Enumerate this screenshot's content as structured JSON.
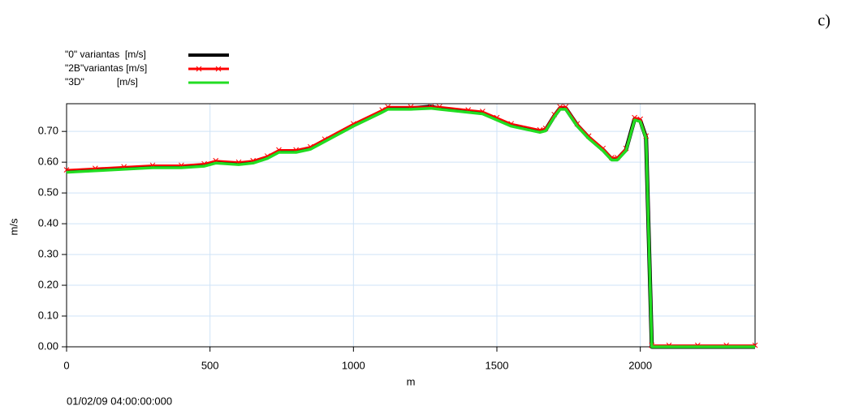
{
  "chart_data": {
    "type": "line",
    "label": "c)",
    "xlabel": "m",
    "ylabel": "m/s",
    "footer": "01/02/09 04:00:00:000",
    "x": [
      0,
      100,
      200,
      300,
      400,
      480,
      520,
      600,
      650,
      700,
      740,
      800,
      850,
      900,
      1000,
      1100,
      1120,
      1200,
      1270,
      1300,
      1400,
      1450,
      1500,
      1550,
      1650,
      1670,
      1700,
      1720,
      1740,
      1780,
      1820,
      1870,
      1900,
      1920,
      1950,
      1980,
      2000,
      2020,
      2040,
      2100,
      2200,
      2300,
      2400
    ],
    "series": [
      {
        "name": "\"0\" variantas  [m/s]",
        "color": "#000000",
        "values": [
          0.57,
          0.575,
          0.58,
          0.585,
          0.585,
          0.59,
          0.6,
          0.595,
          0.6,
          0.615,
          0.635,
          0.635,
          0.645,
          0.67,
          0.72,
          0.765,
          0.775,
          0.775,
          0.78,
          0.775,
          0.765,
          0.76,
          0.74,
          0.72,
          0.7,
          0.705,
          0.75,
          0.775,
          0.775,
          0.72,
          0.68,
          0.64,
          0.61,
          0.61,
          0.64,
          0.74,
          0.735,
          0.68,
          0,
          0,
          0,
          0,
          0
        ]
      },
      {
        "name": "\"2B\"variantas [m/s]",
        "color": "#ff0000",
        "values": [
          0.575,
          0.58,
          0.585,
          0.59,
          0.59,
          0.595,
          0.605,
          0.6,
          0.605,
          0.62,
          0.64,
          0.64,
          0.65,
          0.675,
          0.725,
          0.77,
          0.78,
          0.78,
          0.78,
          0.78,
          0.77,
          0.765,
          0.745,
          0.725,
          0.705,
          0.71,
          0.755,
          0.78,
          0.78,
          0.725,
          0.685,
          0.645,
          0.615,
          0.615,
          0.645,
          0.745,
          0.74,
          0.685,
          0.005,
          0.005,
          0.005,
          0.005,
          0.005
        ]
      },
      {
        "name": "\"3D\"            [m/s]",
        "color": "#22dd22",
        "values": [
          0.567,
          0.572,
          0.577,
          0.582,
          0.582,
          0.587,
          0.597,
          0.592,
          0.597,
          0.612,
          0.632,
          0.632,
          0.642,
          0.667,
          0.717,
          0.762,
          0.772,
          0.772,
          0.775,
          0.772,
          0.762,
          0.757,
          0.737,
          0.717,
          0.697,
          0.702,
          0.747,
          0.772,
          0.772,
          0.717,
          0.677,
          0.637,
          0.607,
          0.607,
          0.637,
          0.737,
          0.732,
          0.677,
          0,
          0,
          0,
          0,
          0
        ]
      }
    ],
    "xlim": [
      0,
      2400
    ],
    "xticks": [
      0,
      500,
      1000,
      1500,
      2000
    ],
    "ylim": [
      0,
      0.79
    ],
    "yticks": [
      {
        "value": 0,
        "label": "0.00"
      },
      {
        "value": 0.1,
        "label": "0.10"
      },
      {
        "value": 0.2,
        "label": "0.20"
      },
      {
        "value": 0.3,
        "label": "0.30"
      },
      {
        "value": 0.4,
        "label": "0.40"
      },
      {
        "value": 0.5,
        "label": "0.50"
      },
      {
        "value": 0.6,
        "label": "0.60"
      },
      {
        "value": 0.7,
        "label": "0.70"
      }
    ],
    "grid": true
  }
}
